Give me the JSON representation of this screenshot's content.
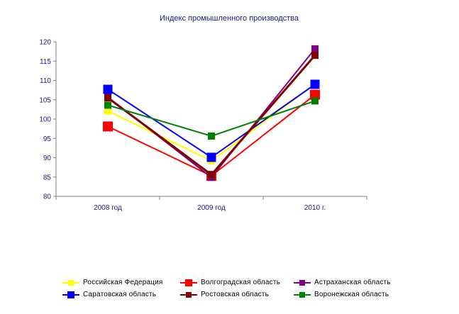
{
  "chart_data": {
    "type": "line",
    "title": "Индекс промышленного производства",
    "categories": [
      "2008 год",
      "2009 год",
      "2010 г."
    ],
    "y_ticks": [
      "80",
      "85",
      "90",
      "95",
      "100",
      "105",
      "110",
      "115",
      "120"
    ],
    "ylim": [
      80,
      120
    ],
    "grid": false,
    "legend_position": "bottom",
    "series": [
      {
        "name": "Российская Федерация",
        "color": "#ffff00",
        "values": [
          102.1,
          89.2,
          109.0
        ]
      },
      {
        "name": "Волгоградская область",
        "color": "#ff0000",
        "values": [
          98.1,
          85.3,
          106.3
        ]
      },
      {
        "name": "Астраханская область",
        "color": "#800080",
        "values": [
          105.7,
          84.9,
          118.2
        ]
      },
      {
        "name": "Саратовская область",
        "color": "#0000ff",
        "values": [
          107.7,
          90.1,
          109.0
        ]
      },
      {
        "name": "Ростовская область",
        "color": "#800000",
        "values": [
          105.5,
          85.6,
          116.5
        ]
      },
      {
        "name": "Воронежская область",
        "color": "#008000",
        "values": [
          103.6,
          95.6,
          104.7
        ]
      }
    ]
  },
  "legend": {
    "items": [
      {
        "label": "Российская Федерация",
        "color": "#ffff00",
        "marker": "square-small"
      },
      {
        "label": "Волгоградская область",
        "color": "#ff0000",
        "marker": "square"
      },
      {
        "label": "Астраханская область",
        "color": "#800080",
        "marker": "square-small"
      },
      {
        "label": "Саратовская область",
        "color": "#0000ff",
        "marker": "square"
      },
      {
        "label": "Ростовская область",
        "color": "#800000",
        "marker": "square-small"
      },
      {
        "label": "Воронежская область",
        "color": "#008000",
        "marker": "square-small"
      }
    ]
  }
}
